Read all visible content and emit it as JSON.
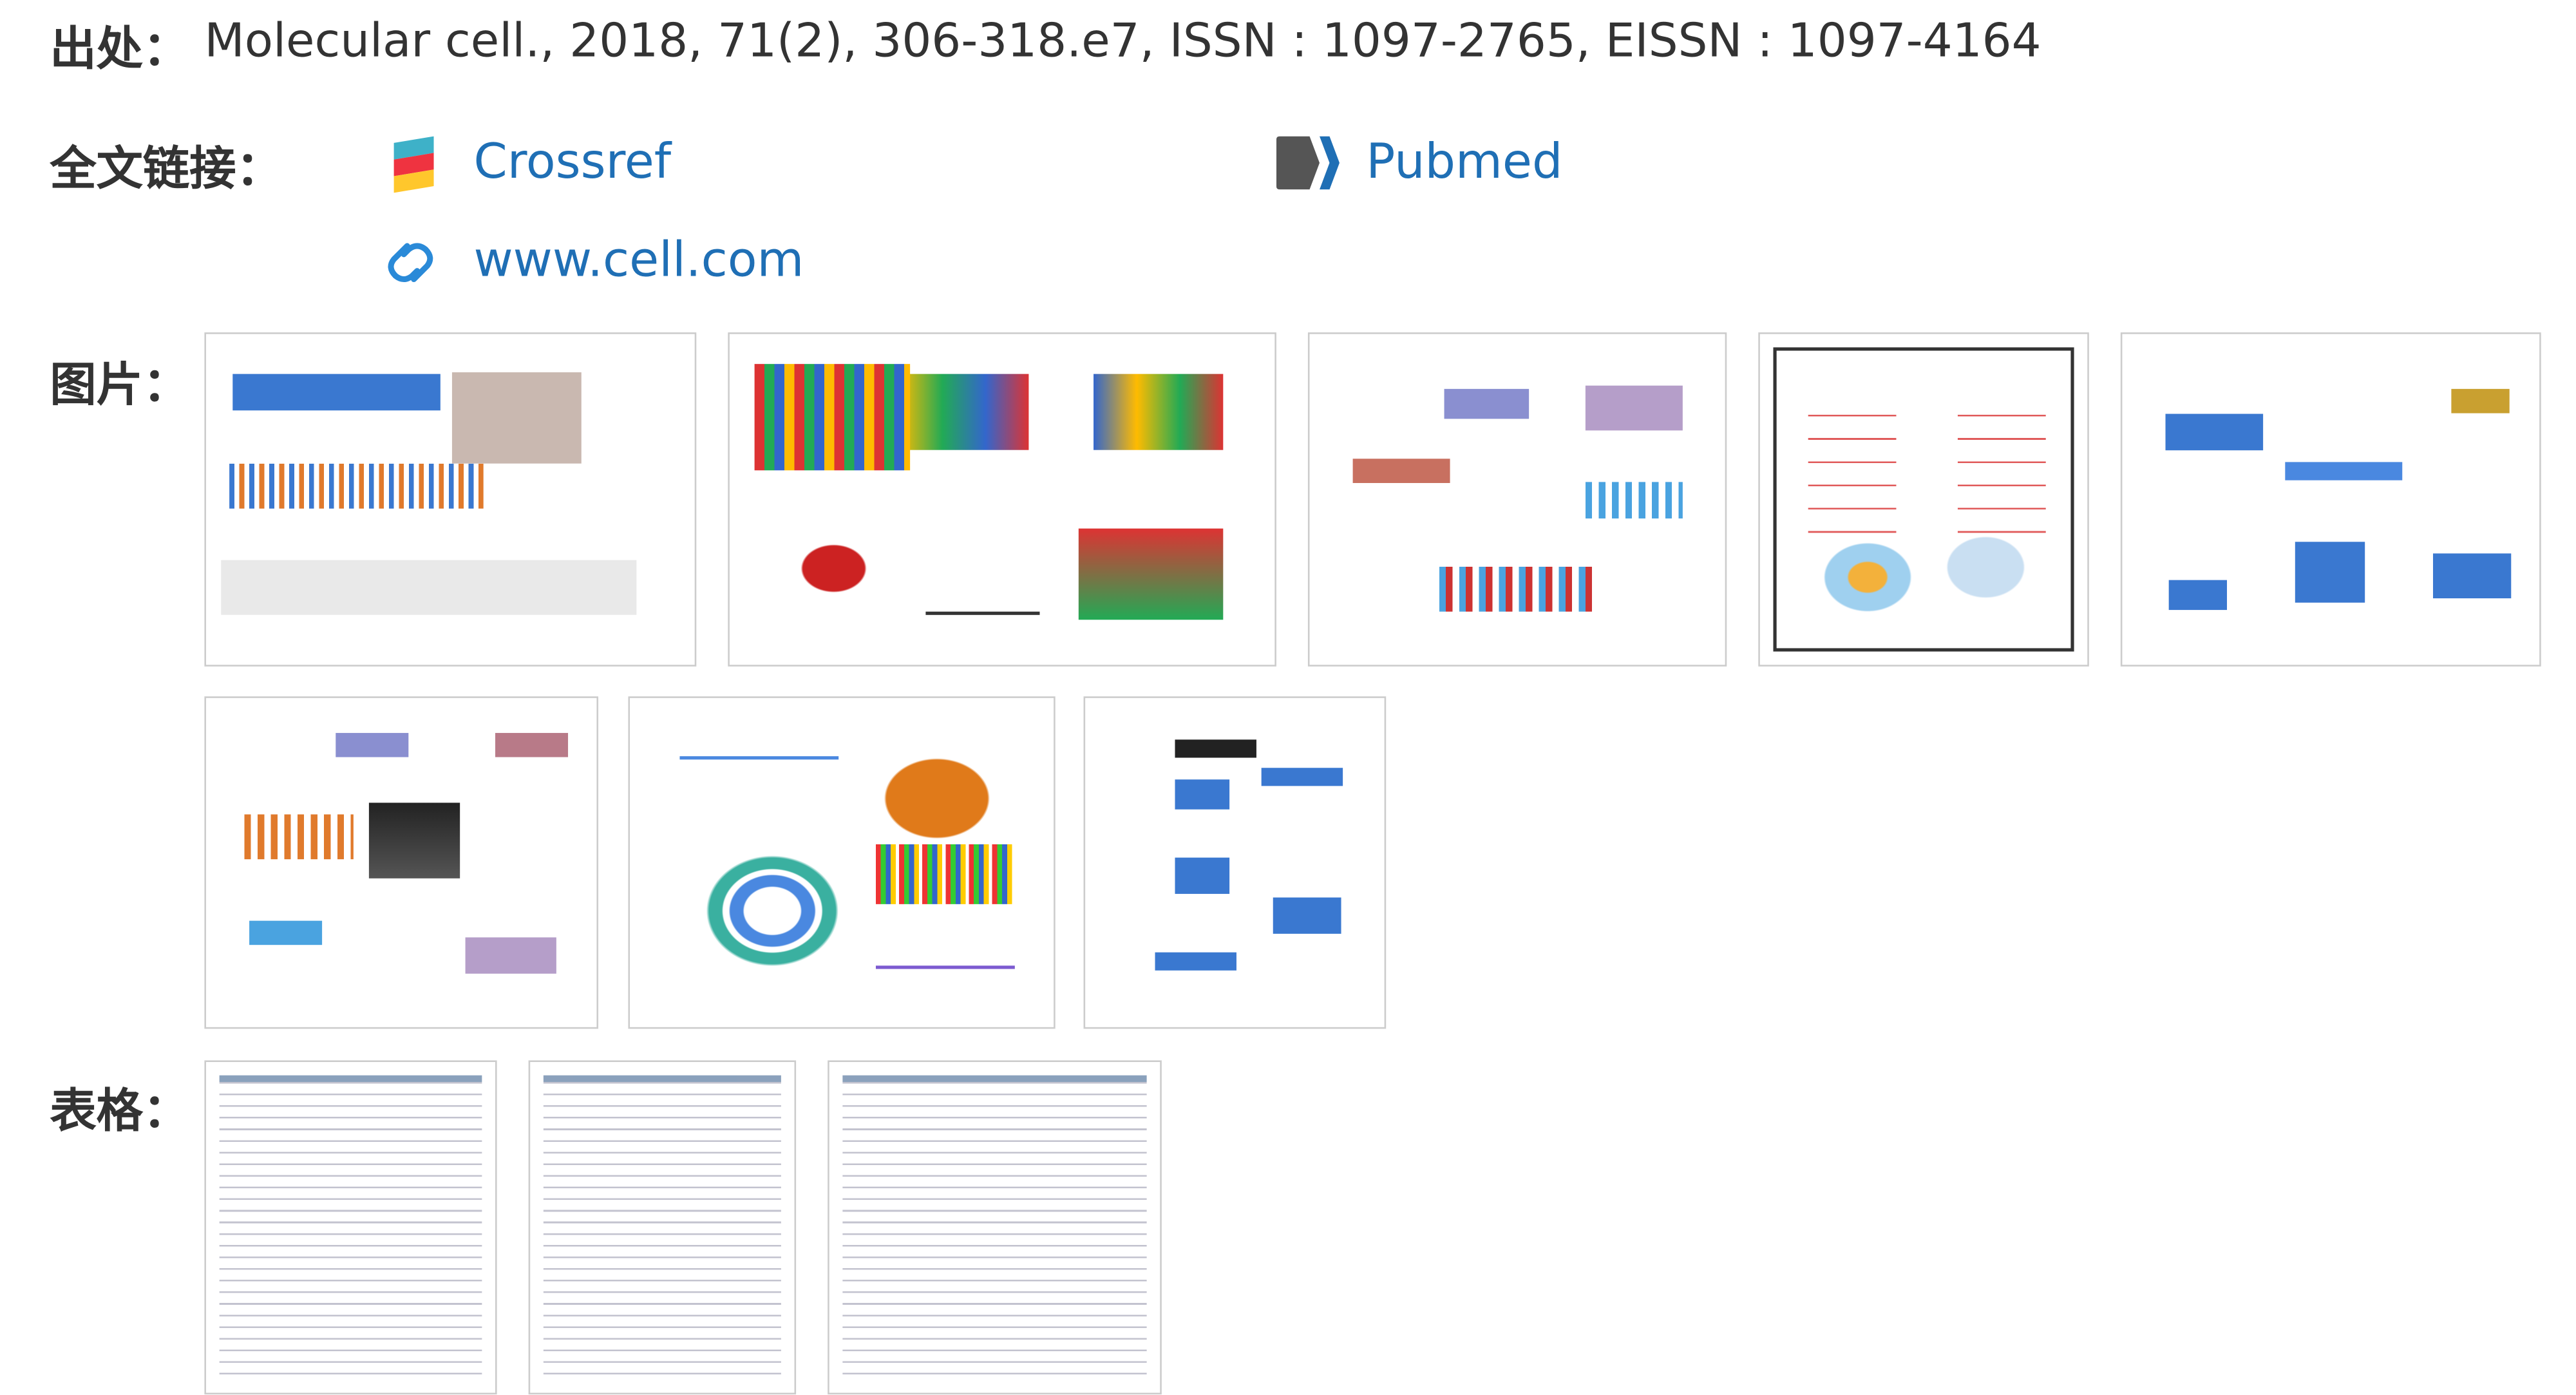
{
  "source": {
    "label": "出处：",
    "text": "Molecular cell., 2018, 71(2), 306-318.e7, ISSN : 1097-2765, EISSN : 1097-4164"
  },
  "links": {
    "label": "全文链接：",
    "items": [
      "Crossref",
      "Pubmed",
      "www.cell.com"
    ]
  },
  "figures": {
    "label": "图片："
  },
  "tables": {
    "label": "表格："
  }
}
